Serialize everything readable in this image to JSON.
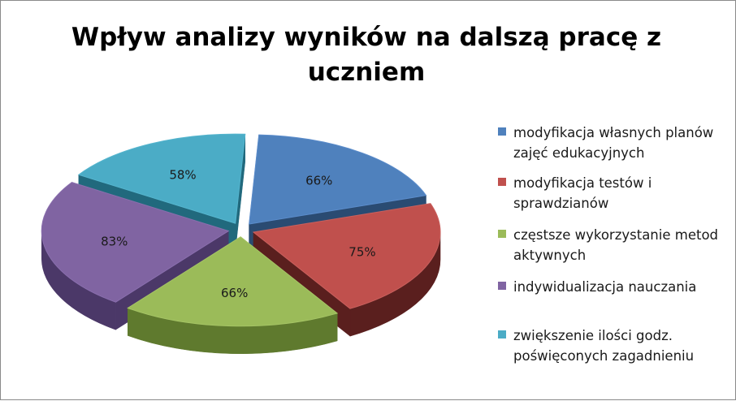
{
  "chart_data": {
    "type": "pie",
    "title": "Wpływ analizy wyników na dalszą pracę z uczniem",
    "slices": [
      {
        "label": "modyfikacja własnych planów zajęć edukacyjnych",
        "value": 66,
        "display": "66%",
        "color": "#4f81bd",
        "side": "#2a4b72",
        "top": "#5b8ccb"
      },
      {
        "label": "modyfikacja testów i sprawdzianów",
        "value": 75,
        "display": "75%",
        "color": "#c0504d",
        "side": "#5a1f1e",
        "top": "#c9605d"
      },
      {
        "label": "częstsze wykorzystanie metod aktywnych",
        "value": 66,
        "display": "66%",
        "color": "#9bbb59",
        "side": "#5f7a2e",
        "top": "#a5c465"
      },
      {
        "label": "indywidualizacja nauczania",
        "value": 83,
        "display": "83%",
        "color": "#8064a2",
        "side": "#4b3868",
        "top": "#8a6fae"
      },
      {
        "label": "zwiększenie ilości godz. poświęconych zagadnieniu",
        "value": 58,
        "display": "58%",
        "color": "#4bacc6",
        "side": "#21697d",
        "top": "#55b5ce"
      }
    ],
    "legend_position": "right",
    "exploded": true,
    "three_d": true
  }
}
